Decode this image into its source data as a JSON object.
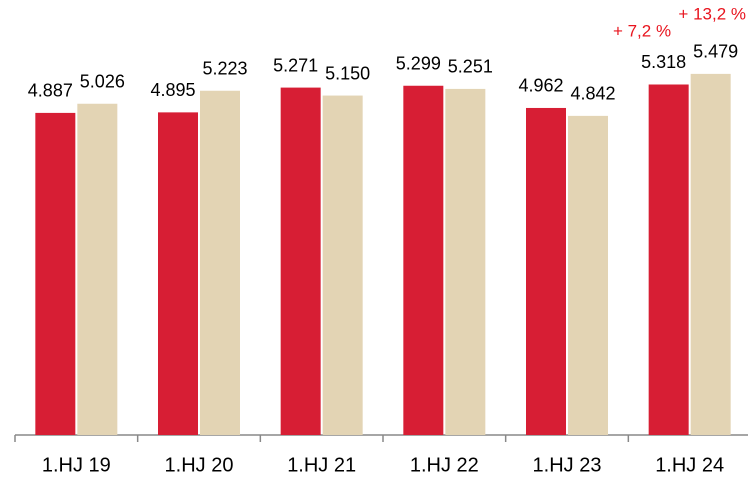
{
  "chart_data": {
    "type": "bar",
    "categories": [
      "1.HJ 19",
      "1.HJ 20",
      "1.HJ 21",
      "1.HJ 22",
      "1.HJ 23",
      "1.HJ 24"
    ],
    "series": [
      {
        "color": "#d71e34",
        "values": [
          4887,
          4895,
          5271,
          5299,
          4962,
          5318
        ],
        "value_labels": [
          "4.887",
          "4.895",
          "5.271",
          "5.299",
          "4.962",
          "5.318"
        ]
      },
      {
        "color": "#e3d4b4",
        "values": [
          5026,
          5223,
          5150,
          5251,
          4842,
          5479
        ],
        "value_labels": [
          "5.026",
          "5.223",
          "5.150",
          "5.251",
          "4.842",
          "5.479"
        ]
      }
    ],
    "ylim": [
      0,
      6600
    ],
    "annotations": [
      "+ 7,2 %",
      "+ 13,2 %"
    ]
  }
}
